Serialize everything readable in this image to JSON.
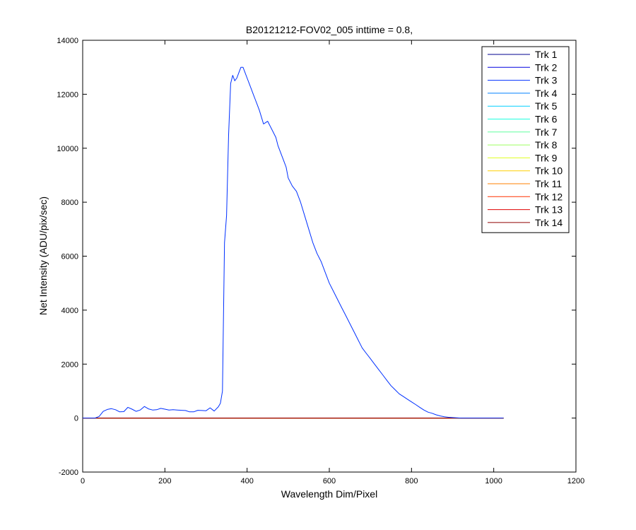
{
  "chart_data": {
    "type": "line",
    "title": "B20121212-FOV02_005 inttime = 0.8,",
    "xlabel": "Wavelength Dim/Pixel",
    "ylabel": "Net Intensity (ADU/pix/sec)",
    "xlim": [
      0,
      1200
    ],
    "ylim": [
      -2000,
      14000
    ],
    "xticks": [
      0,
      200,
      400,
      600,
      800,
      1000,
      1200
    ],
    "yticks": [
      -2000,
      0,
      2000,
      4000,
      6000,
      8000,
      10000,
      12000,
      14000
    ],
    "grid": false,
    "legend_position": "top-right",
    "series": [
      {
        "name": "Trk 1",
        "color": "#00008f",
        "x": [
          0,
          1024
        ],
        "y": [
          0,
          0
        ]
      },
      {
        "name": "Trk 2",
        "color": "#0000df",
        "x": [
          0,
          1024
        ],
        "y": [
          0,
          0
        ]
      },
      {
        "name": "Trk 3",
        "color": "#0030ff",
        "x": [
          0,
          30,
          40,
          50,
          60,
          70,
          80,
          90,
          100,
          110,
          120,
          130,
          140,
          150,
          160,
          170,
          180,
          190,
          200,
          210,
          220,
          230,
          240,
          250,
          260,
          270,
          280,
          290,
          300,
          310,
          320,
          330,
          335,
          340,
          345,
          350,
          355,
          360,
          365,
          370,
          375,
          380,
          385,
          390,
          395,
          400,
          405,
          410,
          415,
          420,
          425,
          430,
          440,
          450,
          460,
          470,
          475,
          480,
          485,
          490,
          495,
          500,
          510,
          520,
          530,
          540,
          550,
          560,
          570,
          580,
          590,
          600,
          610,
          620,
          630,
          640,
          650,
          660,
          670,
          680,
          690,
          700,
          710,
          720,
          730,
          740,
          750,
          760,
          770,
          780,
          790,
          800,
          810,
          820,
          830,
          840,
          850,
          860,
          870,
          880,
          890,
          900,
          910,
          920,
          930,
          940,
          950,
          960,
          970,
          980,
          990,
          1000,
          1010,
          1024
        ],
        "y": [
          0,
          0,
          60,
          250,
          320,
          350,
          310,
          230,
          240,
          400,
          330,
          250,
          300,
          430,
          340,
          300,
          310,
          360,
          330,
          300,
          310,
          300,
          290,
          280,
          230,
          230,
          290,
          280,
          270,
          380,
          260,
          420,
          550,
          1000,
          6500,
          7500,
          10500,
          12400,
          12700,
          12500,
          12600,
          12800,
          13000,
          13000,
          12800,
          12600,
          12400,
          12200,
          12000,
          11800,
          11600,
          11400,
          10900,
          11000,
          10700,
          10400,
          10100,
          9900,
          9700,
          9500,
          9300,
          8900,
          8600,
          8400,
          8000,
          7500,
          7000,
          6500,
          6100,
          5800,
          5400,
          5000,
          4700,
          4400,
          4100,
          3800,
          3500,
          3200,
          2900,
          2600,
          2400,
          2200,
          2000,
          1800,
          1600,
          1400,
          1200,
          1050,
          900,
          800,
          700,
          600,
          500,
          400,
          300,
          220,
          180,
          120,
          80,
          50,
          30,
          20,
          10,
          0,
          0,
          0,
          0,
          0,
          0,
          0,
          0,
          0,
          0,
          0
        ]
      },
      {
        "name": "Trk 4",
        "color": "#0080ff",
        "x": [
          0,
          1024
        ],
        "y": [
          0,
          0
        ]
      },
      {
        "name": "Trk 5",
        "color": "#00cfff",
        "x": [
          0,
          1024
        ],
        "y": [
          0,
          0
        ]
      },
      {
        "name": "Trk 6",
        "color": "#20ffdf",
        "x": [
          0,
          1024
        ],
        "y": [
          0,
          0
        ]
      },
      {
        "name": "Trk 7",
        "color": "#60ff9f",
        "x": [
          0,
          1024
        ],
        "y": [
          0,
          0
        ]
      },
      {
        "name": "Trk 8",
        "color": "#9fff60",
        "x": [
          0,
          1024
        ],
        "y": [
          0,
          0
        ]
      },
      {
        "name": "Trk 9",
        "color": "#dfff20",
        "x": [
          0,
          1024
        ],
        "y": [
          0,
          0
        ]
      },
      {
        "name": "Trk 10",
        "color": "#ffcf00",
        "x": [
          0,
          1024
        ],
        "y": [
          0,
          0
        ]
      },
      {
        "name": "Trk 11",
        "color": "#ff8000",
        "x": [
          0,
          1024
        ],
        "y": [
          0,
          0
        ]
      },
      {
        "name": "Trk 12",
        "color": "#ff3000",
        "x": [
          0,
          1024
        ],
        "y": [
          0,
          0
        ]
      },
      {
        "name": "Trk 13",
        "color": "#df0000",
        "x": [
          0,
          1024
        ],
        "y": [
          0,
          0
        ]
      },
      {
        "name": "Trk 14",
        "color": "#8f0000",
        "x": [
          0,
          1024
        ],
        "y": [
          0,
          0
        ]
      }
    ]
  }
}
